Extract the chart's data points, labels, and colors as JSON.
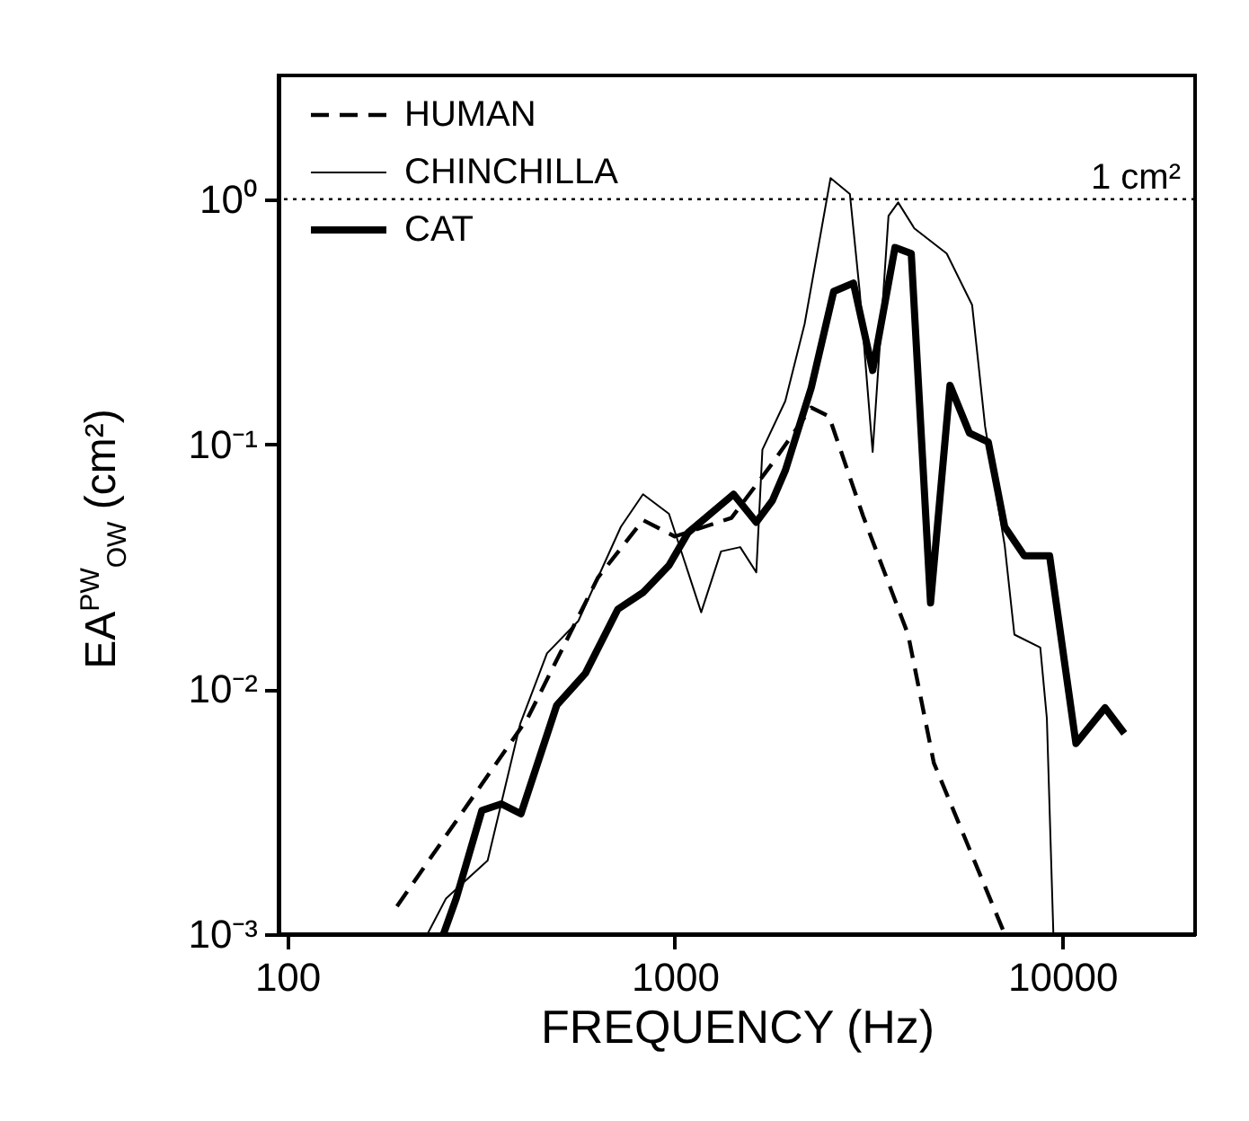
{
  "chart_data": {
    "type": "line",
    "xlabel": "FREQUENCY (Hz)",
    "ylabel": "EA$^{PW}$$_{OW}$ (cm²)",
    "log": "xy",
    "grid": false,
    "legend": "top left",
    "marker": "none",
    "xlim": [
      95,
      22000
    ],
    "ylim": [
      0.001,
      3.2
    ],
    "xticks": [
      100,
      1000,
      10000
    ],
    "yticks": [
      {
        "value": 0.001,
        "label": "10⁻³"
      },
      {
        "value": 0.01,
        "label": "10⁻²"
      },
      {
        "value": 0.1,
        "label": "10⁻¹"
      },
      {
        "value": 1,
        "label": "10⁰"
      }
    ],
    "ref_lines": [
      {
        "axis": "y",
        "value": 1,
        "label": "1 cm²",
        "line_style": "dotted"
      }
    ],
    "series": [
      {
        "name": "HUMAN",
        "color": "#000000",
        "line_style": "dashed",
        "x": [
          192,
          417,
          634,
          828,
          1000,
          1400,
          1800,
          2250,
          2500,
          3060,
          4000,
          4660,
          7100
        ],
        "values": [
          0.0013,
          0.0076,
          0.0286,
          0.049,
          0.042,
          0.05,
          0.085,
          0.141,
          0.13,
          0.051,
          0.0167,
          0.005,
          0.001
        ]
      },
      {
        "name": "CHINCHILLA",
        "color": "#000000",
        "line_style": "solid",
        "x": [
          230,
          257,
          329,
          399,
          468,
          564,
          726,
          828,
          966,
          1170,
          1316,
          1475,
          1623,
          1683,
          1928,
          2163,
          2523,
          2830,
          3000,
          3240,
          3560,
          3770,
          4150,
          5030,
          5850,
          6320,
          7100,
          7520,
          8770,
          9120,
          9480
        ],
        "values": [
          0.001,
          0.0014,
          0.002,
          0.0072,
          0.014,
          0.019,
          0.046,
          0.0625,
          0.052,
          0.0206,
          0.0365,
          0.038,
          0.03,
          0.095,
          0.15,
          0.31,
          1.22,
          1.05,
          0.42,
          0.093,
          0.855,
          0.97,
          0.76,
          0.6,
          0.37,
          0.118,
          0.0386,
          0.0167,
          0.0148,
          0.0076,
          0.001
        ]
      },
      {
        "name": "CAT",
        "color": "#000000",
        "line_style": "solid",
        "x": [
          253,
          273,
          318,
          357,
          401,
          496,
          588,
          713,
          828,
          966,
          1083,
          1418,
          1623,
          1787,
          1928,
          2250,
          2570,
          2890,
          3240,
          3700,
          4075,
          4570,
          5130,
          5760,
          6440,
          7100,
          7980,
          9270,
          10840,
          12880,
          14450
        ],
        "values": [
          0.001,
          0.0014,
          0.0032,
          0.0034,
          0.0031,
          0.0086,
          0.0116,
          0.0212,
          0.0248,
          0.032,
          0.0436,
          0.0625,
          0.048,
          0.059,
          0.078,
          0.17,
          0.42,
          0.455,
          0.2,
          0.635,
          0.6,
          0.0225,
          0.174,
          0.111,
          0.102,
          0.046,
          0.035,
          0.035,
          0.006,
          0.0084,
          0.0066
        ]
      }
    ]
  }
}
